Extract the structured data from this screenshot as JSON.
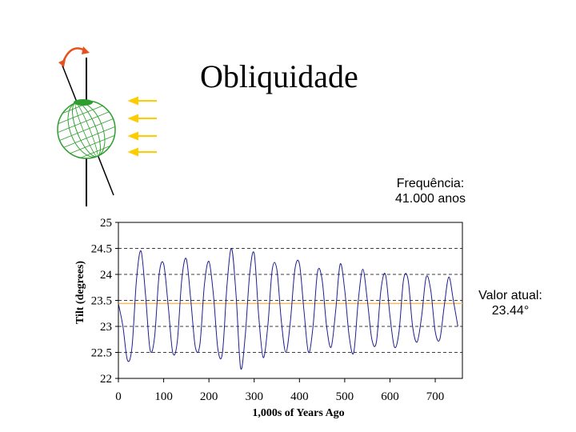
{
  "slide": {
    "title": "Obliquidade",
    "frequency_label": "Frequência:",
    "frequency_value": "41.000 anos",
    "current_label": "Valor atual:",
    "current_value": "23.44°"
  },
  "illustration": {
    "globe_icon": "earth-globe-icon",
    "rotation_icon": "curved-arrow-icon",
    "sunlight_icon": "sunlight-arrows-icon",
    "globe_color": "#2e9e2e",
    "arrow_color": "#ffcc00",
    "rotation_color": "#e8501e"
  },
  "chart_data": {
    "type": "line",
    "xlabel": "1,000s of Years Ago",
    "ylabel": "Tilt (degrees)",
    "xlim": [
      0,
      760
    ],
    "ylim": [
      22,
      25
    ],
    "x_ticks": [
      "0",
      "100",
      "200",
      "300",
      "400",
      "500",
      "600",
      "700"
    ],
    "y_ticks": [
      "22",
      "22.5",
      "23",
      "23.5",
      "24",
      "24.5",
      "25"
    ],
    "grid": "horizontal dashed",
    "line_color": "#1f1f8f",
    "reference_line": {
      "y": 23.44,
      "color": "#f0c060"
    },
    "series": [
      {
        "x": [
          0,
          10,
          20,
          30,
          40,
          50,
          60,
          70,
          80,
          90,
          100,
          110,
          120,
          130,
          140,
          150,
          160,
          170,
          180,
          190,
          200,
          210,
          220,
          230,
          240,
          250,
          260,
          270,
          280,
          290,
          300,
          310,
          320,
          330,
          340,
          350,
          360,
          370,
          380,
          390,
          400,
          410,
          420,
          430,
          440,
          450,
          460,
          470,
          480,
          490,
          500,
          510,
          520,
          530,
          540,
          550,
          560,
          570,
          580,
          590,
          600,
          610,
          620,
          630,
          640,
          650,
          660,
          670,
          680,
          690,
          700,
          710,
          720,
          730,
          740,
          750
        ],
        "y": [
          23.44,
          23.0,
          22.35,
          22.6,
          23.9,
          24.45,
          23.6,
          22.55,
          22.8,
          24.0,
          24.2,
          23.4,
          22.5,
          22.7,
          23.9,
          24.3,
          23.5,
          22.6,
          22.65,
          23.8,
          24.25,
          23.6,
          22.55,
          22.5,
          23.8,
          24.5,
          23.6,
          22.2,
          22.8,
          24.0,
          24.4,
          23.2,
          22.4,
          23.0,
          24.1,
          24.1,
          23.1,
          22.5,
          23.1,
          24.1,
          24.2,
          23.3,
          22.5,
          23.0,
          24.05,
          23.9,
          23.0,
          22.6,
          23.3,
          24.2,
          23.7,
          22.8,
          22.5,
          23.5,
          24.1,
          23.5,
          22.75,
          22.7,
          23.7,
          24.0,
          23.2,
          22.6,
          22.9,
          23.9,
          23.9,
          23.0,
          22.7,
          23.2,
          23.95,
          23.7,
          22.9,
          22.75,
          23.4,
          23.95,
          23.5,
          23.0
        ]
      }
    ]
  }
}
